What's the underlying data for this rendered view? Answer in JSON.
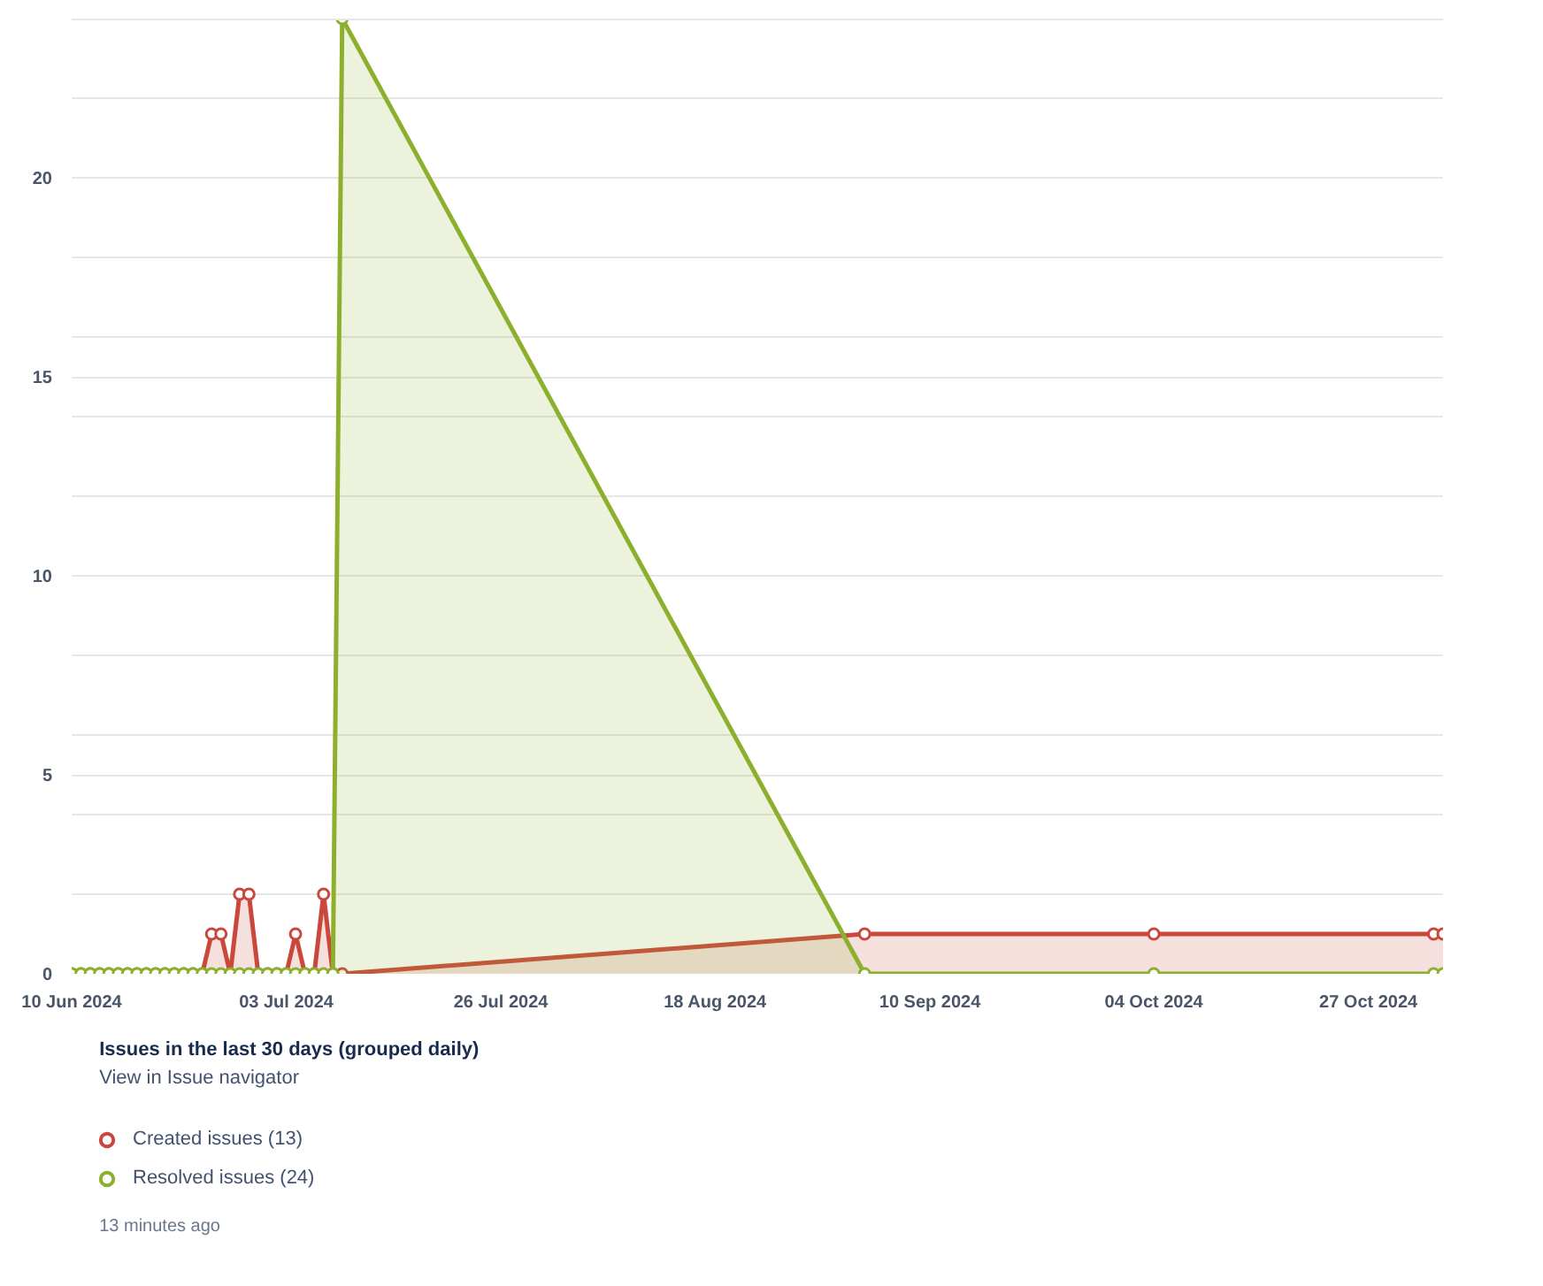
{
  "chart_data": {
    "type": "area",
    "title": "Issues in the last 30 days (grouped daily)",
    "annotations": [
      "View in Issue navigator",
      "13 minutes ago"
    ],
    "x": [
      "2024-06-10",
      "2024-06-11",
      "2024-06-12",
      "2024-06-13",
      "2024-06-14",
      "2024-06-15",
      "2024-06-16",
      "2024-06-17",
      "2024-06-18",
      "2024-06-19",
      "2024-06-20",
      "2024-06-21",
      "2024-06-22",
      "2024-06-23",
      "2024-06-24",
      "2024-06-25",
      "2024-06-26",
      "2024-06-27",
      "2024-06-28",
      "2024-06-29",
      "2024-06-30",
      "2024-07-01",
      "2024-07-02",
      "2024-07-03",
      "2024-07-04",
      "2024-07-05",
      "2024-07-06",
      "2024-07-07",
      "2024-07-08",
      "2024-07-09",
      "2024-09-03",
      "2024-10-04",
      "2024-11-03",
      "2024-11-04"
    ],
    "series": [
      {
        "name": "Created issues (13)",
        "color": "#c9473b",
        "values": [
          0,
          0,
          0,
          0,
          0,
          0,
          0,
          0,
          0,
          0,
          0,
          0,
          0,
          0,
          0,
          1,
          1,
          0,
          2,
          2,
          0,
          0,
          0,
          0,
          1,
          0,
          0,
          2,
          0,
          0,
          1,
          1,
          1,
          1
        ]
      },
      {
        "name": "Resolved issues (24)",
        "color": "#8cb02e",
        "values": [
          0,
          0,
          0,
          0,
          0,
          0,
          0,
          0,
          0,
          0,
          0,
          0,
          0,
          0,
          0,
          0,
          0,
          0,
          0,
          0,
          0,
          0,
          0,
          0,
          0,
          0,
          0,
          0,
          0,
          24,
          0,
          0,
          0,
          0
        ]
      }
    ],
    "xlim": [
      "2024-06-10",
      "2024-11-04"
    ],
    "xticks": [
      {
        "value": "2024-06-10",
        "label": "10 Jun 2024"
      },
      {
        "value": "2024-07-03",
        "label": "03 Jul 2024"
      },
      {
        "value": "2024-07-26",
        "label": "26 Jul 2024"
      },
      {
        "value": "2024-08-18",
        "label": "18 Aug 2024"
      },
      {
        "value": "2024-09-10",
        "label": "10 Sep 2024"
      },
      {
        "value": "2024-10-04",
        "label": "04 Oct 2024"
      },
      {
        "value": "2024-10-27",
        "label": "27 Oct 2024"
      }
    ],
    "ylim": [
      0,
      24
    ],
    "yticks": [
      0,
      {
        "value": 2,
        "label": null
      },
      {
        "value": 4,
        "label": null
      },
      5,
      {
        "value": 6,
        "label": null
      },
      {
        "value": 8,
        "label": null
      },
      10,
      {
        "value": 12,
        "label": null
      },
      {
        "value": 14,
        "label": null
      },
      15,
      {
        "value": 16,
        "label": null
      },
      {
        "value": 18,
        "label": null
      },
      20,
      {
        "value": 22,
        "label": null
      },
      {
        "value": 24,
        "label": null
      }
    ],
    "grid": "y",
    "legend": "bottom left",
    "marker": "circle"
  }
}
